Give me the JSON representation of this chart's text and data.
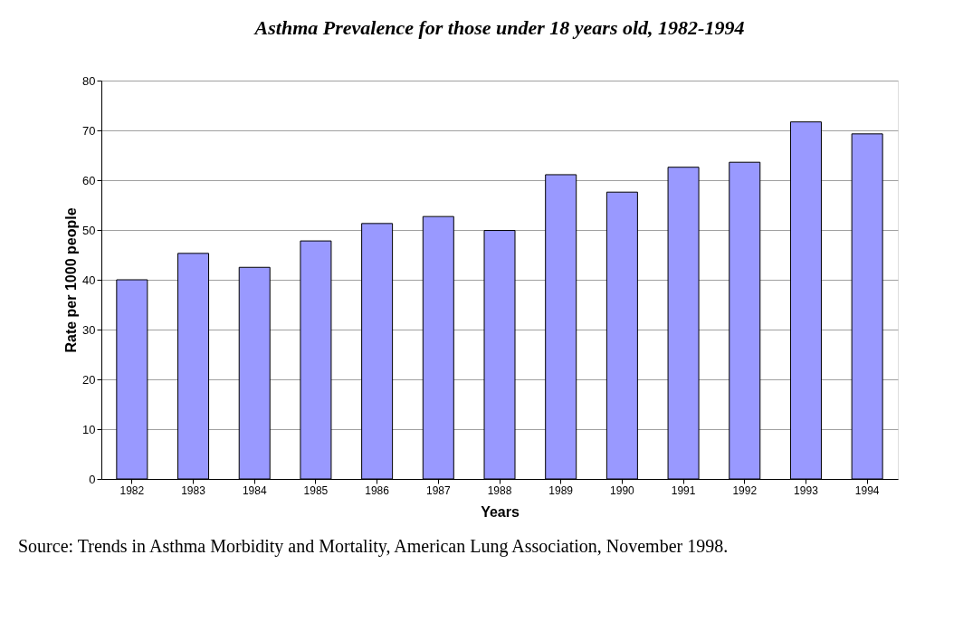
{
  "chart_data": {
    "type": "bar",
    "title": "Asthma Prevalence for those under 18 years old, 1982-1994",
    "xlabel": "Years",
    "ylabel": "Rate per 1000 people",
    "categories": [
      "1982",
      "1983",
      "1984",
      "1985",
      "1986",
      "1987",
      "1988",
      "1989",
      "1990",
      "1991",
      "1992",
      "1993",
      "1994"
    ],
    "values": [
      40.0,
      45.3,
      42.5,
      47.8,
      51.3,
      52.7,
      49.9,
      61.1,
      57.6,
      62.6,
      63.6,
      71.7,
      69.3
    ],
    "color": "#9999ff",
    "ylim": [
      0,
      80
    ],
    "yticks": [
      0,
      10,
      20,
      30,
      40,
      50,
      60,
      70,
      80
    ],
    "grid": "y",
    "annotations": [
      "Source: Trends in Asthma Morbidity and Mortality, American Lung Association, November 1998."
    ]
  }
}
